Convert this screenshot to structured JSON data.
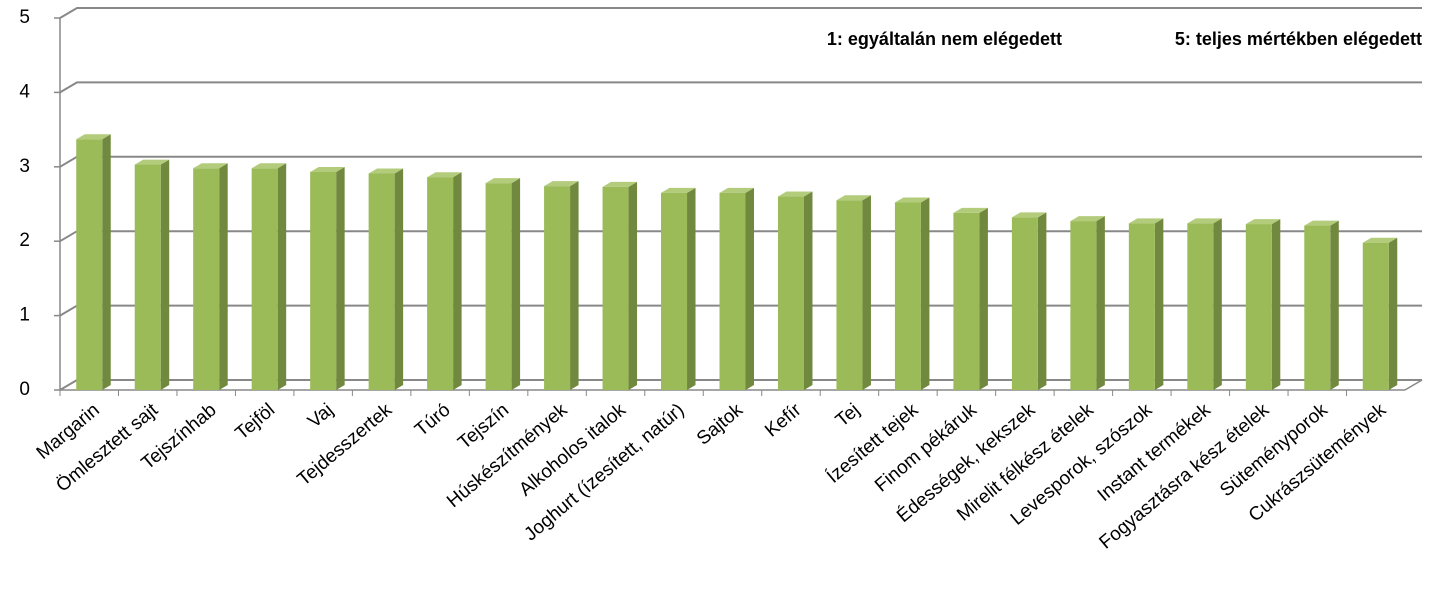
{
  "chart_data": {
    "type": "bar3d",
    "annotations": [
      "1: egyáltalán nem elégedett",
      "5: teljes mértékben elégedett"
    ],
    "categories": [
      "Margarin",
      "Ömlesztett sajt",
      "Tejszínhab",
      "Tejföl",
      "Vaj",
      "Tejdesszertek",
      "Túró",
      "Tejszín",
      "Húskészítmények",
      "Alkoholos italok",
      "Joghurt (ízesített, natúr)",
      "Sajtok",
      "Kefír",
      "Tej",
      "Ízesített tejek",
      "Finom pékáruk",
      "Édességek, kekszek",
      "Mirelit félkész ételek",
      "Levesporok, szószok",
      "Instant termékek",
      "Fogyasztásra kész ételek",
      "Süteményporok",
      "Cukrászsütemények"
    ],
    "values": [
      3.37,
      3.03,
      2.98,
      2.98,
      2.93,
      2.91,
      2.86,
      2.78,
      2.74,
      2.73,
      2.65,
      2.65,
      2.6,
      2.55,
      2.52,
      2.38,
      2.32,
      2.27,
      2.24,
      2.24,
      2.23,
      2.21,
      1.98
    ],
    "color": "#9bbb59",
    "ylim": [
      0,
      5
    ],
    "yticks": [
      0,
      1,
      2,
      3,
      4,
      5
    ],
    "grid": true
  }
}
